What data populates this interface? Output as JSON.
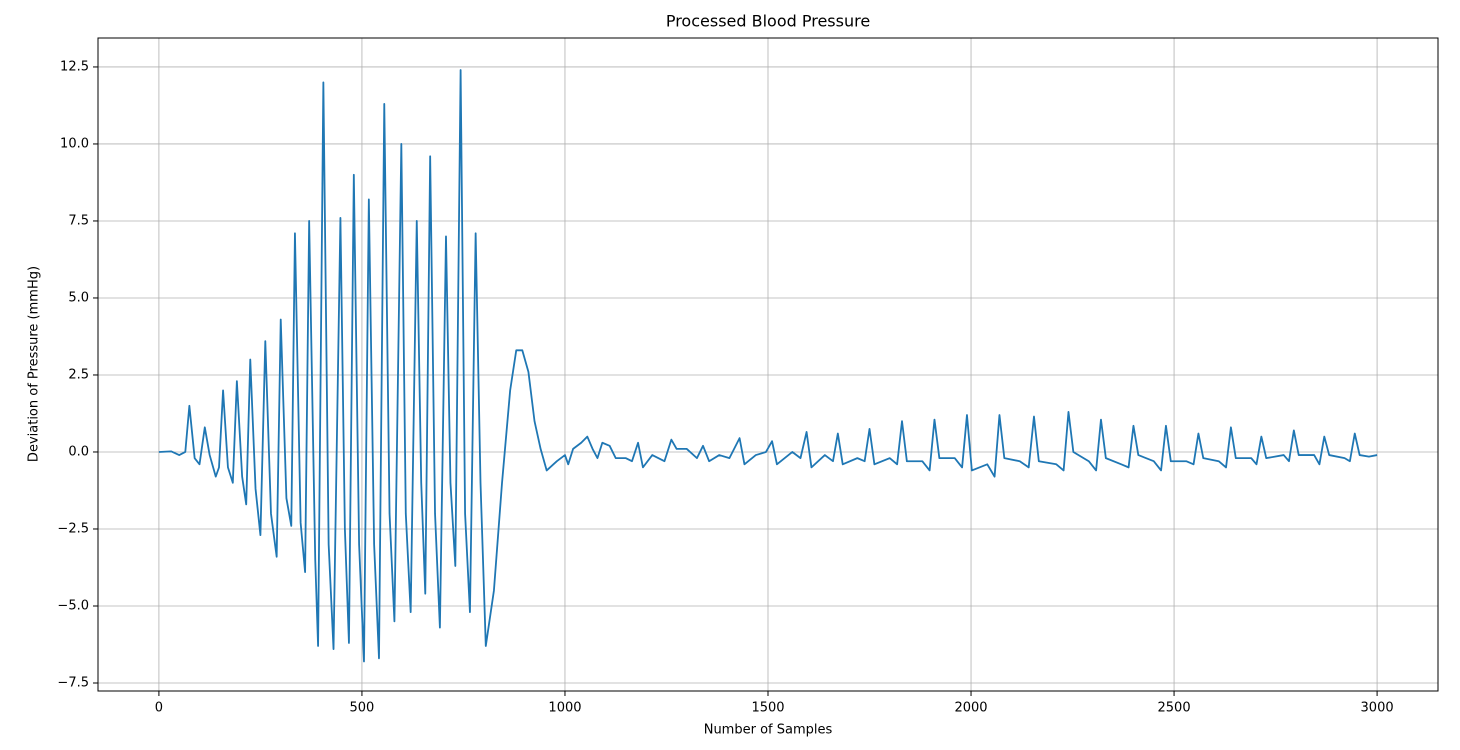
{
  "chart_data": {
    "type": "line",
    "title": "Processed Blood Pressure",
    "x_label": "Number of Samples",
    "y_label": "Deviation of Pressure (mmHg)",
    "color": "#1f77b4",
    "grid": true,
    "xlim": [
      -150,
      3150
    ],
    "ylim": [
      -7.76,
      13.44
    ],
    "xticks": [
      0,
      500,
      1000,
      1500,
      2000,
      2500,
      3000
    ],
    "yticks": [
      {
        "value": -7.5,
        "label": "−7.5"
      },
      {
        "value": -5,
        "label": "−5.0"
      },
      {
        "value": -2.5,
        "label": "−2.5"
      },
      {
        "value": 0,
        "label": "0.0"
      },
      {
        "value": 2.5,
        "label": "2.5"
      },
      {
        "value": 5,
        "label": "5.0"
      },
      {
        "value": 7.5,
        "label": "7.5"
      },
      {
        "value": 10,
        "label": "10.0"
      },
      {
        "value": 12.5,
        "label": "12.5"
      }
    ],
    "x": [
      0,
      30,
      50,
      65,
      75,
      88,
      100,
      113,
      125,
      140,
      148,
      158,
      170,
      182,
      192,
      205,
      215,
      225,
      238,
      250,
      262,
      276,
      290,
      300,
      314,
      326,
      335,
      349,
      360,
      370,
      385,
      392,
      405,
      418,
      430,
      447,
      458,
      468,
      480,
      493,
      505,
      517,
      530,
      542,
      555,
      568,
      580,
      597,
      608,
      620,
      635,
      646,
      656,
      668,
      680,
      692,
      707,
      718,
      730,
      743,
      754,
      766,
      780,
      792,
      805,
      825,
      845,
      865,
      880,
      895,
      910,
      925,
      940,
      955,
      980,
      1000,
      1008,
      1020,
      1040,
      1055,
      1068,
      1080,
      1092,
      1110,
      1125,
      1150,
      1165,
      1180,
      1192,
      1215,
      1245,
      1262,
      1275,
      1300,
      1325,
      1340,
      1355,
      1380,
      1405,
      1430,
      1442,
      1470,
      1495,
      1510,
      1522,
      1560,
      1580,
      1595,
      1607,
      1640,
      1660,
      1672,
      1684,
      1720,
      1738,
      1750,
      1762,
      1800,
      1818,
      1830,
      1842,
      1880,
      1898,
      1910,
      1922,
      1960,
      1978,
      1990,
      2002,
      2040,
      2058,
      2070,
      2082,
      2120,
      2142,
      2155,
      2167,
      2210,
      2228,
      2240,
      2252,
      2290,
      2308,
      2320,
      2332,
      2370,
      2388,
      2400,
      2412,
      2450,
      2468,
      2480,
      2492,
      2530,
      2548,
      2560,
      2572,
      2610,
      2628,
      2640,
      2652,
      2690,
      2703,
      2715,
      2727,
      2770,
      2783,
      2795,
      2807,
      2845,
      2858,
      2870,
      2882,
      2920,
      2933,
      2945,
      2957,
      2980,
      3000
    ],
    "values": [
      0,
      0.02,
      -0.1,
      0,
      1.5,
      -0.2,
      -0.4,
      0.8,
      -0.1,
      -0.8,
      -0.5,
      2.0,
      -0.5,
      -1.0,
      2.3,
      -0.8,
      -1.7,
      3.0,
      -1.2,
      -2.7,
      3.6,
      -2.0,
      -3.4,
      4.3,
      -1.5,
      -2.4,
      7.1,
      -2.3,
      -3.9,
      7.5,
      -3.5,
      -6.3,
      12.0,
      -3.0,
      -6.4,
      7.6,
      -2.5,
      -6.2,
      9.0,
      -3.0,
      -6.8,
      8.2,
      -3.0,
      -6.7,
      11.3,
      -2.0,
      -5.5,
      10.0,
      -2.0,
      -5.2,
      7.5,
      -1.0,
      -4.6,
      9.6,
      -2.0,
      -5.7,
      7.0,
      -1.0,
      -3.7,
      12.4,
      -2.0,
      -5.2,
      7.1,
      -1.0,
      -6.3,
      -4.5,
      -1.0,
      2.0,
      3.3,
      3.3,
      2.6,
      1.0,
      0.1,
      -0.6,
      -0.3,
      -0.1,
      -0.4,
      0.1,
      0.3,
      0.5,
      0.1,
      -0.2,
      0.3,
      0.2,
      -0.2,
      -0.2,
      -0.3,
      0.3,
      -0.5,
      -0.1,
      -0.3,
      0.4,
      0.1,
      0.1,
      -0.2,
      0.2,
      -0.3,
      -0.1,
      -0.2,
      0.45,
      -0.4,
      -0.1,
      0.0,
      0.35,
      -0.4,
      0.0,
      -0.2,
      0.65,
      -0.5,
      -0.1,
      -0.3,
      0.6,
      -0.4,
      -0.2,
      -0.3,
      0.75,
      -0.4,
      -0.2,
      -0.4,
      1.0,
      -0.3,
      -0.3,
      -0.6,
      1.05,
      -0.2,
      -0.2,
      -0.5,
      1.2,
      -0.6,
      -0.4,
      -0.8,
      1.2,
      -0.2,
      -0.3,
      -0.5,
      1.15,
      -0.3,
      -0.4,
      -0.6,
      1.3,
      0.0,
      -0.3,
      -0.6,
      1.05,
      -0.2,
      -0.4,
      -0.5,
      0.85,
      -0.1,
      -0.3,
      -0.6,
      0.85,
      -0.3,
      -0.3,
      -0.4,
      0.6,
      -0.2,
      -0.3,
      -0.5,
      0.8,
      -0.2,
      -0.2,
      -0.4,
      0.5,
      -0.2,
      -0.1,
      -0.3,
      0.7,
      -0.1,
      -0.1,
      -0.4,
      0.5,
      -0.1,
      -0.2,
      -0.3,
      0.6,
      -0.1,
      -0.15,
      -0.1
    ]
  }
}
